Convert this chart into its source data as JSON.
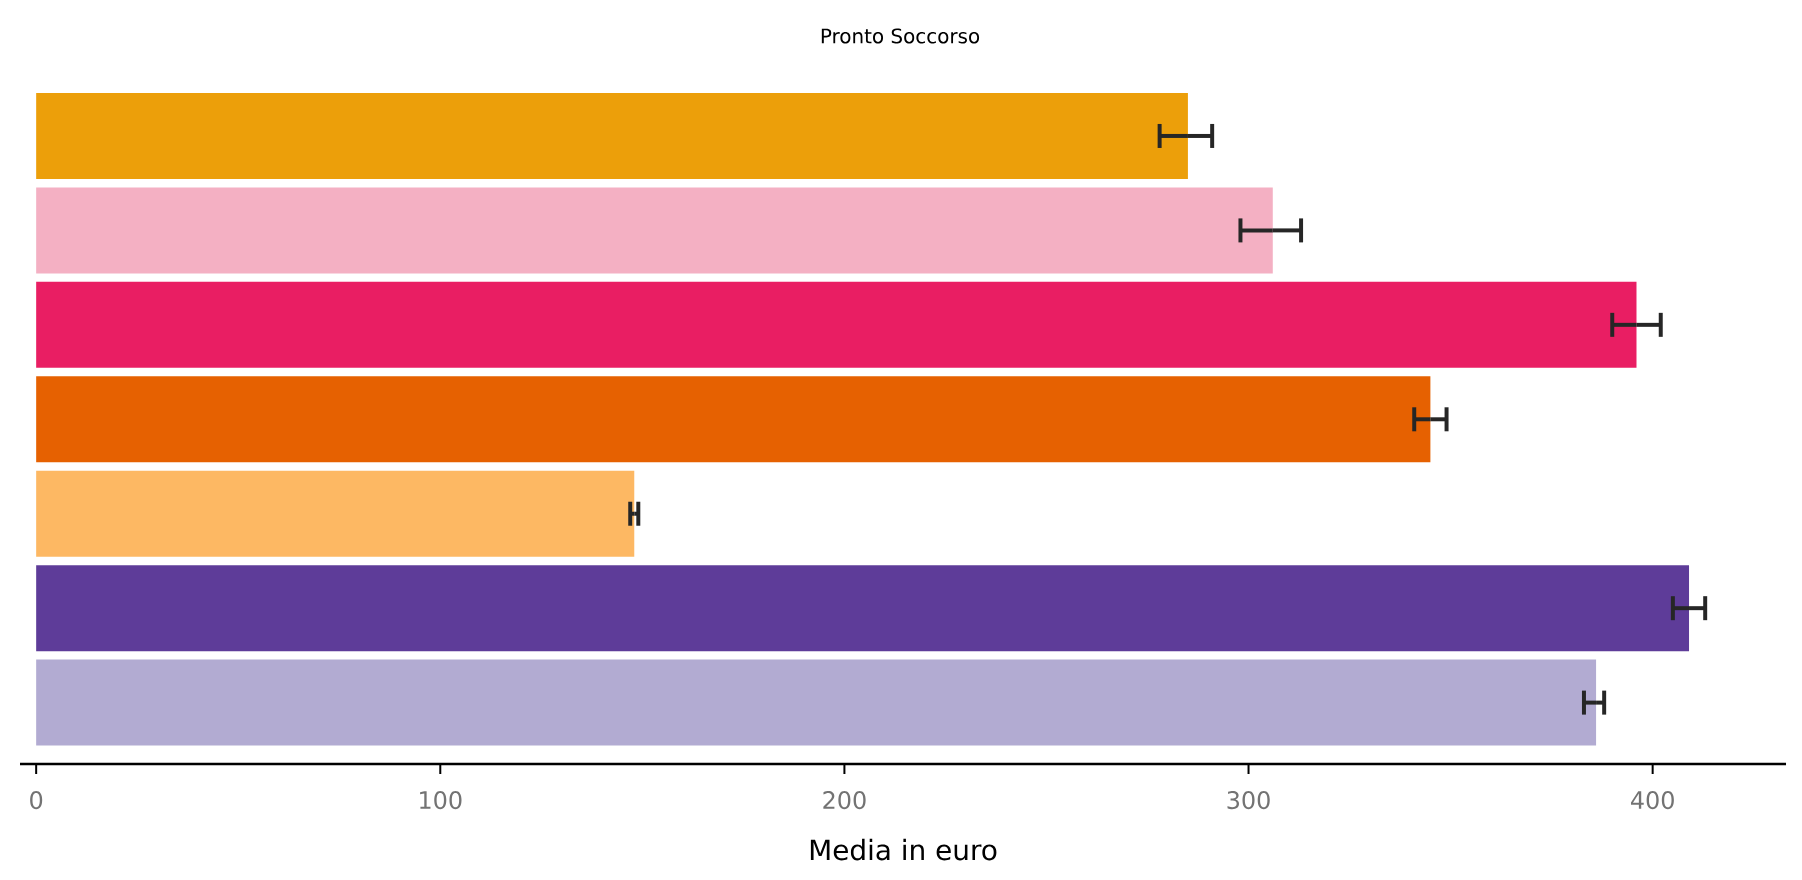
{
  "chart_data": {
    "type": "bar",
    "orientation": "horizontal",
    "title": "Pronto Soccorso",
    "xlabel": "Media in euro",
    "categories": [
      null,
      null,
      null,
      null,
      null,
      null,
      null
    ],
    "values": [
      285,
      306,
      396,
      345,
      148,
      409,
      386
    ],
    "errors": [
      [
        278,
        291
      ],
      [
        298,
        313
      ],
      [
        390,
        402
      ],
      [
        341,
        349
      ],
      [
        147,
        149
      ],
      [
        405,
        413
      ],
      [
        383,
        388
      ]
    ],
    "colors": [
      "#ec9f0a",
      "#f4b0c3",
      "#e91e63",
      "#e66101",
      "#fdb863",
      "#5e3c99",
      "#b2abd2"
    ],
    "xlim": [
      -4,
      433
    ],
    "xticks": [
      0,
      100,
      200,
      300,
      400
    ]
  }
}
